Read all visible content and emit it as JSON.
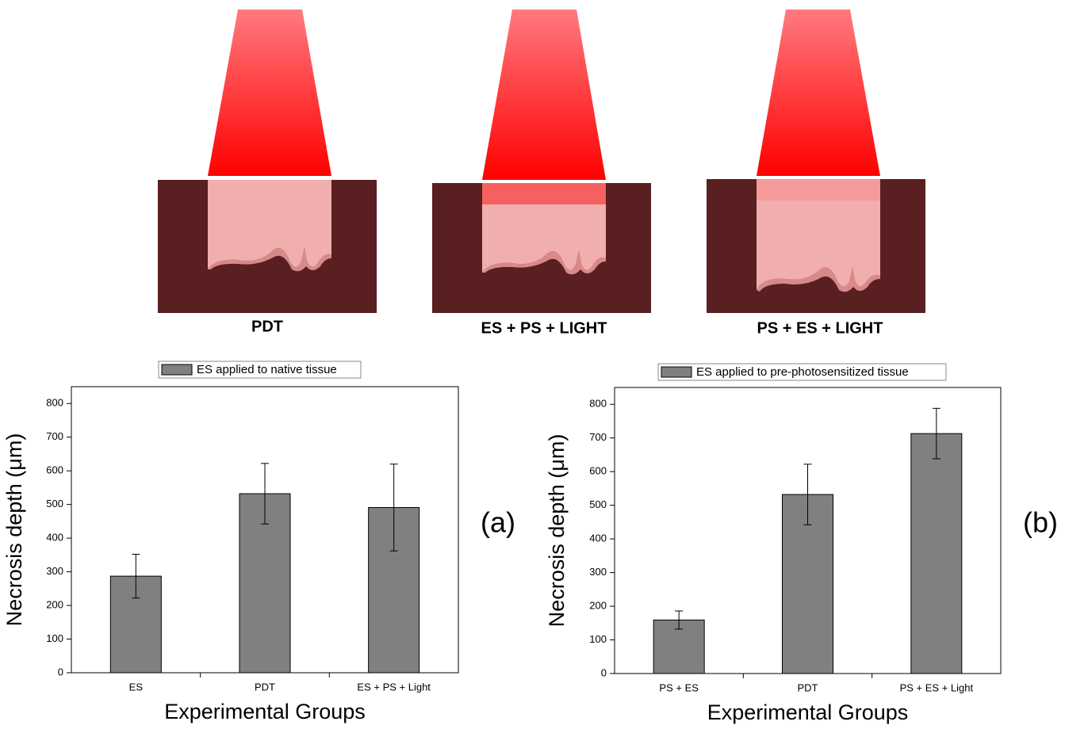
{
  "diagram": {
    "labels": [
      "PDT",
      "ES + PS + LIGHT",
      "PS + ES + LIGHT"
    ]
  },
  "chart_data": [
    {
      "type": "bar",
      "panel_label": "(a)",
      "x_label": "Experimental Groups",
      "y_label": "Necrosis depth (μm)",
      "categories": [
        "ES",
        "PDT",
        "ES + PS + Light"
      ],
      "series": [
        {
          "name": "ES applied to native tissue",
          "color": "#808080",
          "values": [
            287,
            532,
            491
          ],
          "errors": [
            65,
            90,
            129
          ]
        }
      ],
      "ylim": [
        0,
        850
      ],
      "yticks": [
        0,
        100,
        200,
        300,
        400,
        500,
        600,
        700,
        800
      ]
    },
    {
      "type": "bar",
      "panel_label": "(b)",
      "x_label": "Experimental Groups",
      "y_label": "Necrosis depth (μm)",
      "categories": [
        "PS + ES",
        "PDT",
        "PS + ES + Light"
      ],
      "series": [
        {
          "name": "ES applied to pre-photosensitized tissue",
          "color": "#808080",
          "values": [
            159,
            532,
            713
          ],
          "errors": [
            27,
            90,
            75
          ]
        }
      ],
      "ylim": [
        0,
        850
      ],
      "yticks": [
        0,
        100,
        200,
        300,
        400,
        500,
        600,
        700,
        800
      ]
    }
  ]
}
